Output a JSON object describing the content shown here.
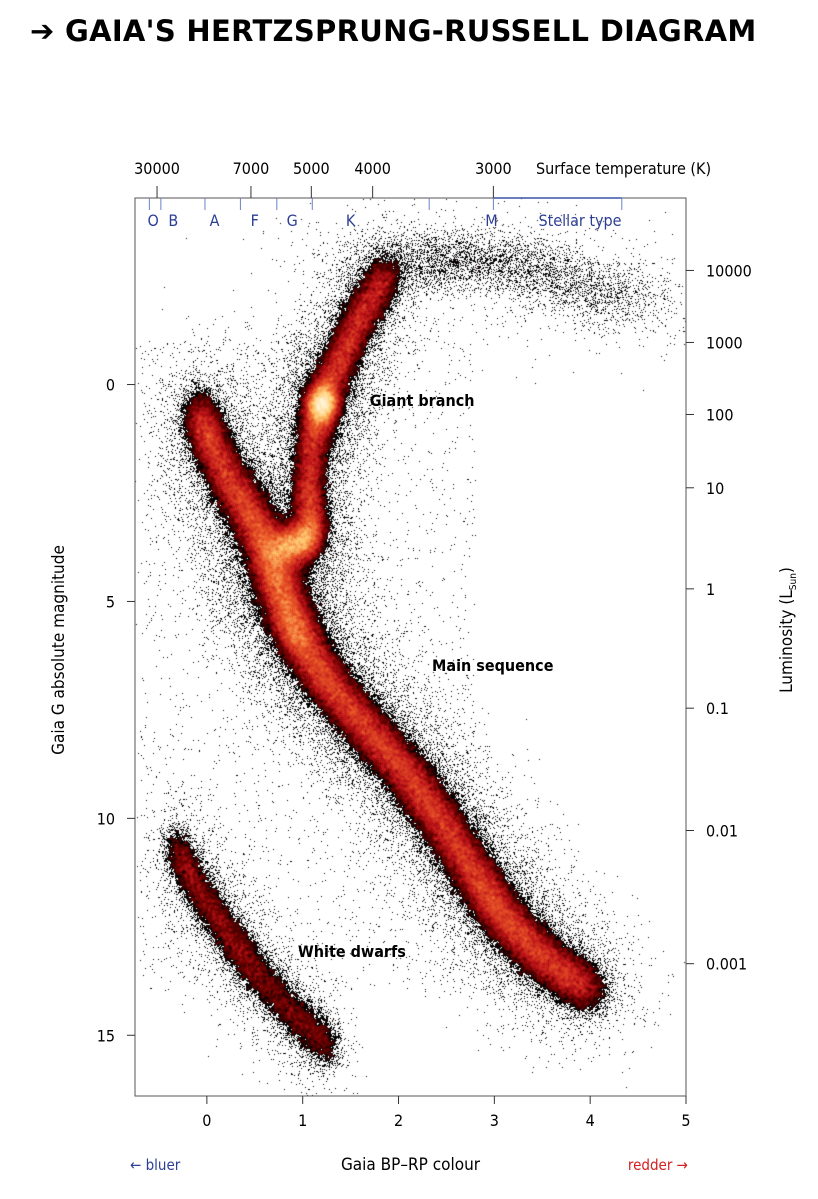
{
  "title": "➔ GAIA'S HERTZSPRUNG-RUSSELL DIAGRAM",
  "chart_data": {
    "type": "scatter",
    "subtype": "density-scatter (Hertzsprung-Russell diagram)",
    "xlabel": "Gaia BP–RP colour",
    "ylabel": "Gaia G absolute magnitude",
    "xlim": [
      -0.75,
      5.0
    ],
    "ylim": [
      16.4,
      -4.3
    ],
    "x_ticks": [
      0,
      1,
      2,
      3,
      4,
      5
    ],
    "y_ticks": [
      0,
      5,
      10,
      15
    ],
    "bluer_label": "← bluer",
    "redder_label": "redder →",
    "top_axis": {
      "label": "Surface temperature (K)",
      "ticks": [
        {
          "label": "30000",
          "colour": -0.52
        },
        {
          "label": "7000",
          "colour": 0.46
        },
        {
          "label": "5000",
          "colour": 1.09
        },
        {
          "label": "4000",
          "colour": 1.73
        },
        {
          "label": "3000",
          "colour": 2.99
        }
      ]
    },
    "stellar_type_axis": {
      "label": "Stellar type",
      "boundaries": [
        -0.6,
        -0.48,
        -0.02,
        0.35,
        0.73,
        1.1,
        2.32,
        2.99,
        4.33
      ],
      "types": [
        {
          "label": "O",
          "colour": -0.56
        },
        {
          "label": "B",
          "colour": -0.35
        },
        {
          "label": "A",
          "colour": 0.08
        },
        {
          "label": "F",
          "colour": 0.5
        },
        {
          "label": "G",
          "colour": 0.89
        },
        {
          "label": "K",
          "colour": 1.5
        },
        {
          "label": "M",
          "colour": 2.97
        }
      ]
    },
    "right_axis": {
      "label": "Luminosity (L",
      "label_sub": "Sun",
      "label_end": ")",
      "ticks": [
        {
          "label": "10000",
          "mag": -2.63
        },
        {
          "label": "1000",
          "mag": -0.97
        },
        {
          "label": "100",
          "mag": 0.69
        },
        {
          "label": "10",
          "mag": 2.38
        },
        {
          "label": "1",
          "mag": 4.71
        },
        {
          "label": "0.1",
          "mag": 7.46
        },
        {
          "label": "0.01",
          "mag": 10.28
        },
        {
          "label": "0.001",
          "mag": 13.35
        }
      ]
    },
    "annotations": [
      {
        "text": "Giant branch",
        "x": 1.7,
        "y": 0.5
      },
      {
        "text": "Main sequence",
        "x": 2.35,
        "y": 6.6
      },
      {
        "text": "White dwarfs",
        "x": 0.95,
        "y": 13.2
      }
    ],
    "ridges": [
      {
        "name": "main-sequence",
        "weight": 0.52,
        "sx": 0.12,
        "sy": 0.28,
        "points": [
          [
            0.62,
            3.6
          ],
          [
            0.72,
            4.4
          ],
          [
            0.85,
            5.3
          ],
          [
            1.0,
            6.0
          ],
          [
            1.3,
            7.0
          ],
          [
            1.7,
            8.0
          ],
          [
            2.1,
            9.0
          ],
          [
            2.45,
            10.1
          ],
          [
            2.8,
            11.3
          ],
          [
            3.1,
            12.3
          ],
          [
            3.5,
            13.2
          ],
          [
            4.0,
            14.0
          ]
        ]
      },
      {
        "name": "upper-main-sequence",
        "weight": 0.12,
        "sx": 0.1,
        "sy": 0.35,
        "points": [
          [
            -0.1,
            0.6
          ],
          [
            0.05,
            1.4
          ],
          [
            0.25,
            2.3
          ],
          [
            0.45,
            3.0
          ],
          [
            0.62,
            3.6
          ]
        ]
      },
      {
        "name": "subgiants",
        "weight": 0.06,
        "sx": 0.08,
        "sy": 0.25,
        "points": [
          [
            0.75,
            3.7
          ],
          [
            0.95,
            3.7
          ],
          [
            1.1,
            3.4
          ]
        ]
      },
      {
        "name": "giant-branch",
        "weight": 0.16,
        "sx": 0.09,
        "sy": 0.3,
        "points": [
          [
            1.1,
            3.4
          ],
          [
            1.05,
            2.5
          ],
          [
            1.1,
            1.2
          ],
          [
            1.2,
            0.3
          ],
          [
            1.4,
            -0.6
          ],
          [
            1.6,
            -1.6
          ],
          [
            1.9,
            -2.6
          ]
        ]
      },
      {
        "name": "red-clump",
        "weight": 0.05,
        "sx": 0.08,
        "sy": 0.25,
        "points": [
          [
            1.15,
            0.5
          ],
          [
            1.25,
            0.4
          ]
        ]
      },
      {
        "name": "agb",
        "weight": 0.02,
        "sx": 0.35,
        "sy": 0.35,
        "points": [
          [
            1.9,
            -2.6
          ],
          [
            2.6,
            -3.0
          ],
          [
            3.5,
            -2.6
          ],
          [
            4.5,
            -1.8
          ]
        ]
      },
      {
        "name": "white-dwarfs",
        "weight": 0.07,
        "sx": 0.07,
        "sy": 0.3,
        "points": [
          [
            -0.35,
            10.6
          ],
          [
            -0.1,
            11.6
          ],
          [
            0.2,
            12.6
          ],
          [
            0.5,
            13.5
          ],
          [
            0.9,
            14.5
          ],
          [
            1.3,
            15.3
          ]
        ]
      }
    ]
  }
}
